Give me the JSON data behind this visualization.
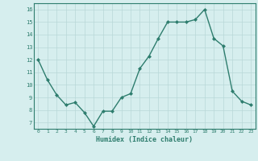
{
  "x": [
    0,
    1,
    2,
    3,
    4,
    5,
    6,
    7,
    8,
    9,
    10,
    11,
    12,
    13,
    14,
    15,
    16,
    17,
    18,
    19,
    20,
    21,
    22,
    23
  ],
  "y": [
    12.0,
    10.4,
    9.2,
    8.4,
    8.6,
    7.8,
    6.7,
    7.9,
    7.9,
    9.0,
    9.3,
    11.3,
    12.3,
    13.7,
    15.0,
    15.0,
    15.0,
    15.2,
    16.0,
    13.7,
    13.1,
    9.5,
    8.7,
    8.4
  ],
  "xlabel": "Humidex (Indice chaleur)",
  "ylim": [
    6.5,
    16.5
  ],
  "xlim": [
    -0.5,
    23.5
  ],
  "line_color": "#2e7d6e",
  "marker_color": "#2e7d6e",
  "bg_color": "#d6eeee",
  "grid_color": "#b8d8d8",
  "yticks": [
    7,
    8,
    9,
    10,
    11,
    12,
    13,
    14,
    15,
    16
  ],
  "xticks": [
    0,
    1,
    2,
    3,
    4,
    5,
    6,
    7,
    8,
    9,
    10,
    11,
    12,
    13,
    14,
    15,
    16,
    17,
    18,
    19,
    20,
    21,
    22,
    23
  ]
}
